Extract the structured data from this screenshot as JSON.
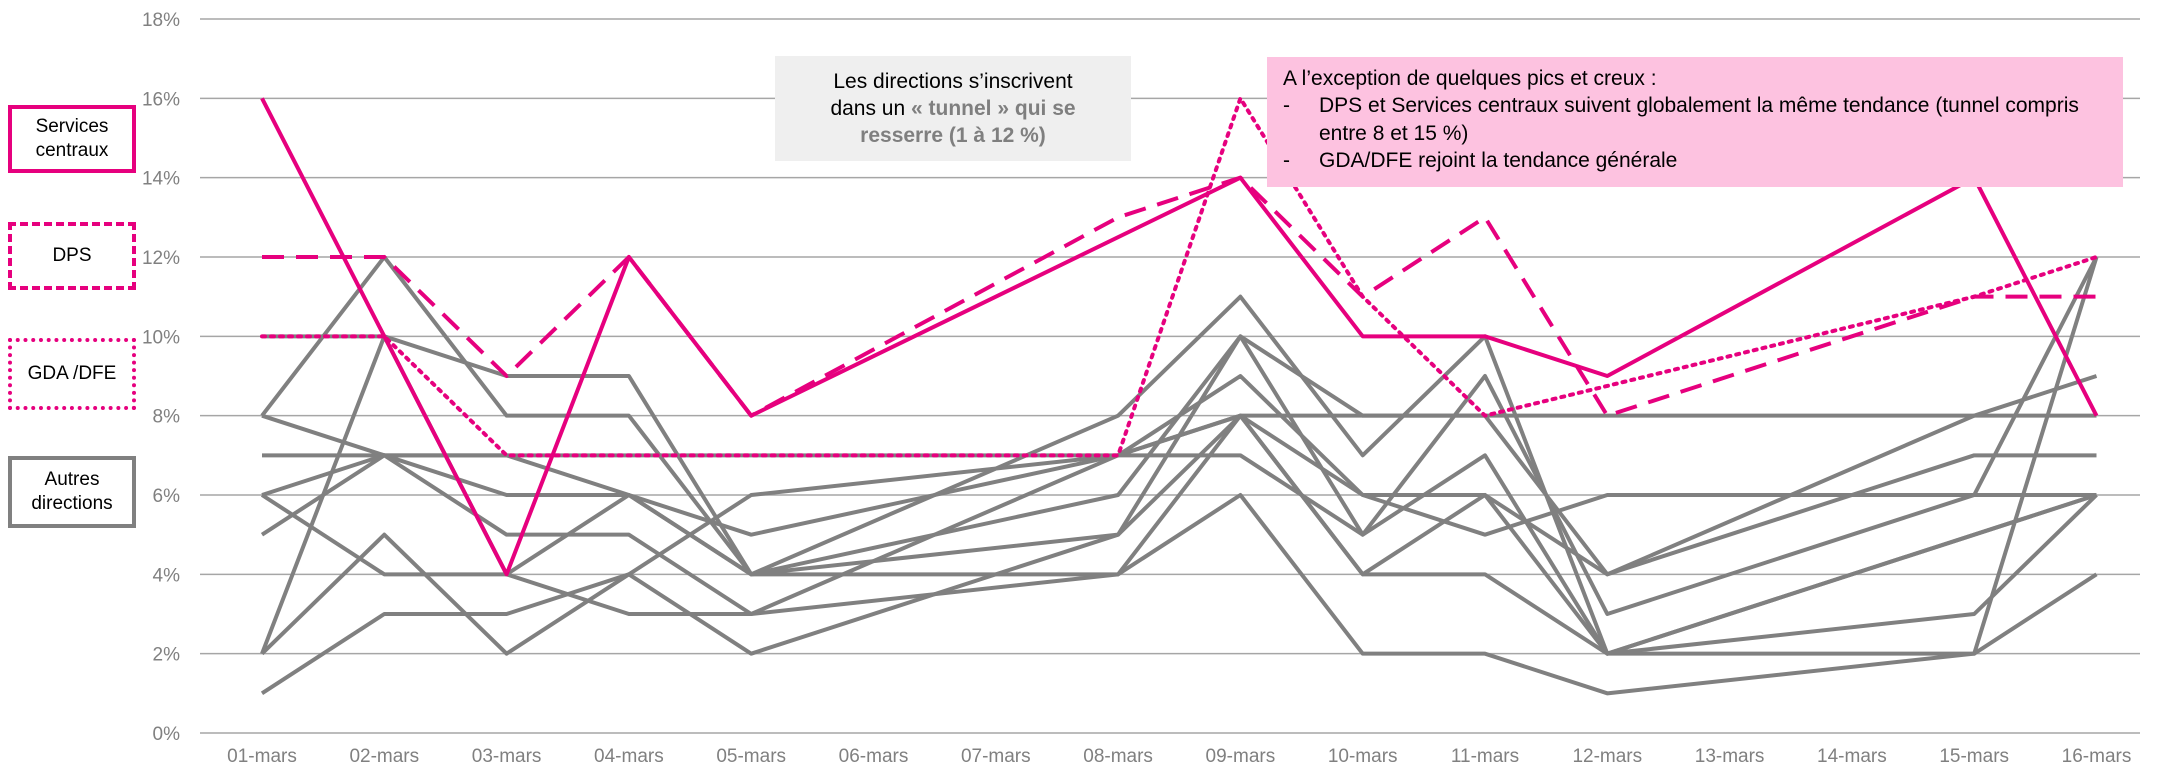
{
  "chart_data": {
    "type": "line",
    "categories": [
      "01-mars",
      "02-mars",
      "03-mars",
      "04-mars",
      "05-mars",
      "06-mars",
      "07-mars",
      "08-mars",
      "09-mars",
      "10-mars",
      "11-mars",
      "12-mars",
      "13-mars",
      "14-mars",
      "15-mars",
      "16-mars"
    ],
    "ylim": [
      0,
      18
    ],
    "yticks": [
      "0%",
      "2%",
      "4%",
      "6%",
      "8%",
      "10%",
      "12%",
      "14%",
      "16%",
      "18%"
    ],
    "grid": true,
    "legend_position": "left",
    "colors": {
      "highlight": "#e6007e",
      "others": "#808080",
      "grid": "#a6a6a6",
      "tick_label": "#808080"
    },
    "series": [
      {
        "name": "Services centraux",
        "group": "services",
        "values": [
          16,
          10,
          4,
          12,
          8,
          null,
          null,
          null,
          14,
          10,
          10,
          9,
          null,
          null,
          14,
          8
        ]
      },
      {
        "name": "DPS",
        "group": "dps",
        "values": [
          12,
          12,
          9,
          12,
          8,
          null,
          null,
          13,
          14,
          11,
          13,
          8,
          null,
          null,
          11,
          11
        ]
      },
      {
        "name": "GDA /DFE",
        "group": "gda",
        "values": [
          10,
          10,
          7,
          null,
          null,
          null,
          null,
          7,
          16,
          11,
          8,
          null,
          null,
          null,
          11,
          12
        ]
      },
      {
        "name": "Autres directions",
        "group": "autres",
        "values": [
          7,
          7,
          7,
          7,
          7,
          7,
          7,
          7,
          8,
          8,
          8,
          8,
          8,
          8,
          8,
          8
        ]
      },
      {
        "name": "Autres directions",
        "group": "autres",
        "values": [
          8,
          12,
          8,
          8,
          4,
          null,
          null,
          8,
          11,
          7,
          10,
          2,
          null,
          null,
          2,
          12
        ]
      },
      {
        "name": "Autres directions",
        "group": "autres",
        "values": [
          10,
          10,
          9,
          9,
          4,
          null,
          null,
          6,
          10,
          5,
          9,
          3,
          null,
          null,
          6,
          12
        ]
      },
      {
        "name": "Autres directions",
        "group": "autres",
        "values": [
          8,
          7,
          7,
          6,
          4,
          null,
          null,
          5,
          10,
          8,
          8,
          4,
          null,
          null,
          8,
          9
        ]
      },
      {
        "name": "Autres directions",
        "group": "autres",
        "values": [
          6,
          7,
          6,
          6,
          5,
          null,
          null,
          7,
          9,
          6,
          6,
          4,
          null,
          null,
          7,
          7
        ]
      },
      {
        "name": "Autres directions",
        "group": "autres",
        "values": [
          5,
          7,
          5,
          5,
          3,
          null,
          null,
          7,
          8,
          4,
          6,
          2,
          null,
          null,
          5,
          6
        ]
      },
      {
        "name": "Autres directions",
        "group": "autres",
        "values": [
          2,
          10,
          4,
          3,
          3,
          null,
          null,
          4,
          6,
          2,
          2,
          1,
          null,
          null,
          2,
          4
        ]
      },
      {
        "name": "Autres directions",
        "group": "autres",
        "values": [
          1,
          3,
          3,
          4,
          2,
          null,
          null,
          5,
          8,
          4,
          4,
          2,
          null,
          null,
          3,
          6
        ]
      },
      {
        "name": "Autres directions",
        "group": "autres",
        "values": [
          6,
          4,
          4,
          6,
          4,
          null,
          null,
          4,
          8,
          6,
          5,
          6,
          null,
          null,
          6,
          6
        ]
      },
      {
        "name": "Autres directions",
        "group": "autres",
        "values": [
          2,
          5,
          2,
          4,
          6,
          null,
          null,
          7,
          7,
          5,
          7,
          2,
          null,
          null,
          5,
          6
        ]
      }
    ]
  },
  "legend": {
    "services": "Services centraux",
    "dps": "DPS",
    "gda": "GDA /DFE",
    "autres": "Autres directions"
  },
  "callout_left": {
    "line1": "Les directions s’inscrivent",
    "line2_pre": "dans un ",
    "line2_strong": "« tunnel » qui se",
    "line3_strong": "resserre (1 à 12 %)"
  },
  "callout_right": {
    "intro": "A l’exception de quelques pics et creux :",
    "items": [
      "DPS et Services centraux suivent globalement la même tendance (tunnel compris entre 8 et 15 %)",
      "GDA/DFE rejoint la tendance générale"
    ],
    "bullet": "-"
  }
}
